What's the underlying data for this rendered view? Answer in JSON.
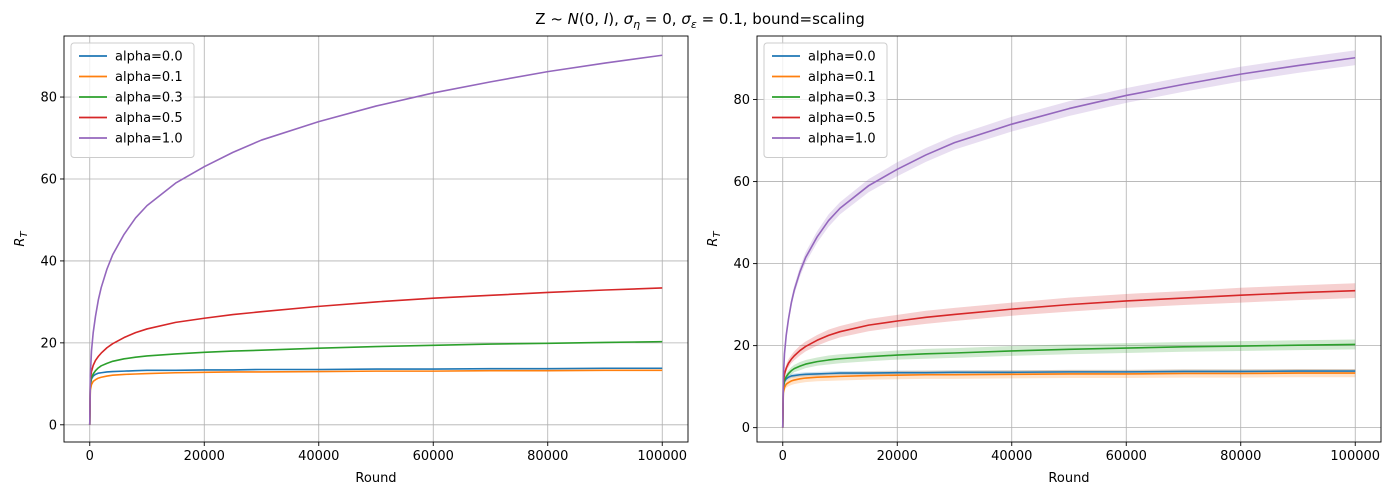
{
  "figure": {
    "suptitle": "Z ~ N(0, I), σ_η = 0, σ_ε = 0.1, bound=scaling",
    "suptitle_parts": {
      "z": "Z",
      "tilde": " ~ ",
      "n": "N",
      "paren_open": "(0, ",
      "i": "I",
      "paren_close": "), ",
      "sigma1": "σ",
      "sub_eta": "η",
      "eq1": " = 0, ",
      "sigma2": "σ",
      "sub_eps": "ε",
      "eq2": " = 0.1, bound=scaling"
    }
  },
  "colors": {
    "alpha=0.0": "#1f77b4",
    "alpha=0.1": "#ff7f0e",
    "alpha=0.3": "#2ca02c",
    "alpha=0.5": "#d62728",
    "alpha=1.0": "#9467bd"
  },
  "chart_data": [
    {
      "type": "line",
      "xlabel": "Round",
      "ylabel_main": "R",
      "ylabel_sub": "T",
      "xlim": [
        -4500,
        104500
      ],
      "ylim": [
        -4.2,
        94.9
      ],
      "xticks": [
        0,
        20000,
        40000,
        60000,
        80000,
        100000
      ],
      "xtick_labels": [
        "0",
        "20000",
        "40000",
        "60000",
        "80000",
        "100000"
      ],
      "yticks": [
        0,
        20,
        40,
        60,
        80
      ],
      "ytick_labels": [
        "0",
        "20",
        "40",
        "60",
        "80"
      ],
      "grid": true,
      "legend_placement": "upper-left",
      "shaded_band": false,
      "x": [
        0,
        100,
        300,
        600,
        1000,
        1500,
        2000,
        3000,
        4000,
        6000,
        8000,
        10000,
        15000,
        20000,
        25000,
        30000,
        40000,
        50000,
        60000,
        70000,
        80000,
        90000,
        100000
      ],
      "series": [
        {
          "name": "alpha=0.0",
          "values": [
            0,
            9.5,
            11.2,
            11.9,
            12.3,
            12.6,
            12.7,
            12.9,
            13.0,
            13.1,
            13.2,
            13.3,
            13.3,
            13.4,
            13.4,
            13.5,
            13.5,
            13.6,
            13.6,
            13.7,
            13.7,
            13.8,
            13.8
          ],
          "band": []
        },
        {
          "name": "alpha=0.1",
          "values": [
            0,
            8.5,
            9.8,
            10.6,
            11.0,
            11.4,
            11.6,
            11.9,
            12.1,
            12.3,
            12.4,
            12.5,
            12.7,
            12.8,
            12.9,
            12.9,
            13.0,
            13.1,
            13.1,
            13.2,
            13.2,
            13.3,
            13.3
          ],
          "band": []
        },
        {
          "name": "alpha=0.3",
          "values": [
            0,
            10.0,
            11.5,
            12.4,
            13.2,
            13.9,
            14.4,
            15.0,
            15.5,
            16.1,
            16.5,
            16.8,
            17.3,
            17.7,
            18.0,
            18.2,
            18.7,
            19.1,
            19.4,
            19.7,
            19.9,
            20.1,
            20.3
          ],
          "band": []
        },
        {
          "name": "alpha=0.5",
          "values": [
            0,
            11.0,
            13.0,
            14.5,
            15.7,
            16.7,
            17.5,
            18.8,
            19.8,
            21.3,
            22.5,
            23.4,
            25.0,
            26.0,
            26.9,
            27.6,
            28.9,
            30.0,
            30.9,
            31.6,
            32.3,
            32.9,
            33.4
          ],
          "band": []
        },
        {
          "name": "alpha=1.0",
          "values": [
            0,
            12.0,
            18.0,
            22.5,
            26.5,
            30.5,
            33.5,
            38.0,
            41.5,
            46.5,
            50.5,
            53.5,
            59.0,
            63.0,
            66.5,
            69.5,
            74.0,
            77.8,
            81.0,
            83.7,
            86.2,
            88.3,
            90.2
          ],
          "band": []
        }
      ]
    },
    {
      "type": "line",
      "xlabel": "Round",
      "ylabel_main": "R",
      "ylabel_sub": "T",
      "xlim": [
        -4500,
        104500
      ],
      "ylim": [
        -3.5,
        95.5
      ],
      "xticks": [
        0,
        20000,
        40000,
        60000,
        80000,
        100000
      ],
      "xtick_labels": [
        "0",
        "20000",
        "40000",
        "60000",
        "80000",
        "100000"
      ],
      "yticks": [
        0,
        20,
        40,
        60,
        80
      ],
      "ytick_labels": [
        "0",
        "20",
        "40",
        "60",
        "80"
      ],
      "grid": true,
      "legend_placement": "upper-left",
      "shaded_band": true,
      "x": [
        0,
        100,
        300,
        600,
        1000,
        1500,
        2000,
        3000,
        4000,
        6000,
        8000,
        10000,
        15000,
        20000,
        25000,
        30000,
        40000,
        50000,
        60000,
        70000,
        80000,
        90000,
        100000
      ],
      "series": [
        {
          "name": "alpha=0.0",
          "values": [
            0,
            9.5,
            11.2,
            11.9,
            12.3,
            12.6,
            12.7,
            12.9,
            13.0,
            13.1,
            13.2,
            13.3,
            13.3,
            13.4,
            13.4,
            13.5,
            13.5,
            13.6,
            13.6,
            13.7,
            13.7,
            13.8,
            13.8
          ],
          "band": [
            0.1,
            0.4,
            0.5,
            0.5,
            0.5,
            0.5,
            0.5,
            0.5,
            0.5,
            0.5,
            0.5,
            0.5,
            0.5,
            0.5,
            0.5,
            0.5,
            0.5,
            0.5,
            0.5,
            0.5,
            0.5,
            0.5,
            0.5
          ]
        },
        {
          "name": "alpha=0.1",
          "values": [
            0,
            8.5,
            9.8,
            10.6,
            11.0,
            11.4,
            11.6,
            11.9,
            12.1,
            12.3,
            12.4,
            12.5,
            12.7,
            12.8,
            12.9,
            12.9,
            13.0,
            13.1,
            13.1,
            13.2,
            13.2,
            13.3,
            13.3
          ],
          "band": [
            0.1,
            0.6,
            0.8,
            0.9,
            0.9,
            1.0,
            1.0,
            1.0,
            1.0,
            1.0,
            1.0,
            1.0,
            1.0,
            1.0,
            1.0,
            1.0,
            1.0,
            1.0,
            1.0,
            1.0,
            1.0,
            1.0,
            1.0
          ]
        },
        {
          "name": "alpha=0.3",
          "values": [
            0,
            10.0,
            11.5,
            12.4,
            13.2,
            13.9,
            14.4,
            15.0,
            15.5,
            16.1,
            16.5,
            16.8,
            17.3,
            17.7,
            18.0,
            18.2,
            18.7,
            19.1,
            19.4,
            19.7,
            19.9,
            20.1,
            20.3
          ],
          "band": [
            0.1,
            0.6,
            0.7,
            0.8,
            0.8,
            0.9,
            0.9,
            1.0,
            1.0,
            1.0,
            1.1,
            1.1,
            1.1,
            1.1,
            1.2,
            1.2,
            1.2,
            1.2,
            1.2,
            1.2,
            1.2,
            1.2,
            1.2
          ]
        },
        {
          "name": "alpha=0.5",
          "values": [
            0,
            11.0,
            13.0,
            14.5,
            15.7,
            16.7,
            17.5,
            18.8,
            19.8,
            21.3,
            22.5,
            23.4,
            25.0,
            26.0,
            26.9,
            27.6,
            28.9,
            30.0,
            30.9,
            31.6,
            32.3,
            32.9,
            33.4
          ],
          "band": [
            0.2,
            0.7,
            0.8,
            0.9,
            1.0,
            1.0,
            1.1,
            1.2,
            1.2,
            1.3,
            1.4,
            1.4,
            1.5,
            1.5,
            1.6,
            1.6,
            1.6,
            1.7,
            1.7,
            1.7,
            1.8,
            1.8,
            1.8
          ]
        },
        {
          "name": "alpha=1.0",
          "values": [
            0,
            12.0,
            18.0,
            22.5,
            26.5,
            30.5,
            33.5,
            38.0,
            41.5,
            46.5,
            50.5,
            53.5,
            59.0,
            63.0,
            66.5,
            69.5,
            74.0,
            77.8,
            81.0,
            83.7,
            86.2,
            88.3,
            90.2
          ],
          "band": [
            0.2,
            0.6,
            0.8,
            0.9,
            1.0,
            1.1,
            1.1,
            1.2,
            1.3,
            1.4,
            1.5,
            1.5,
            1.6,
            1.7,
            1.7,
            1.7,
            1.8,
            1.8,
            1.8,
            1.8,
            1.8,
            1.8,
            1.8
          ]
        }
      ]
    }
  ]
}
